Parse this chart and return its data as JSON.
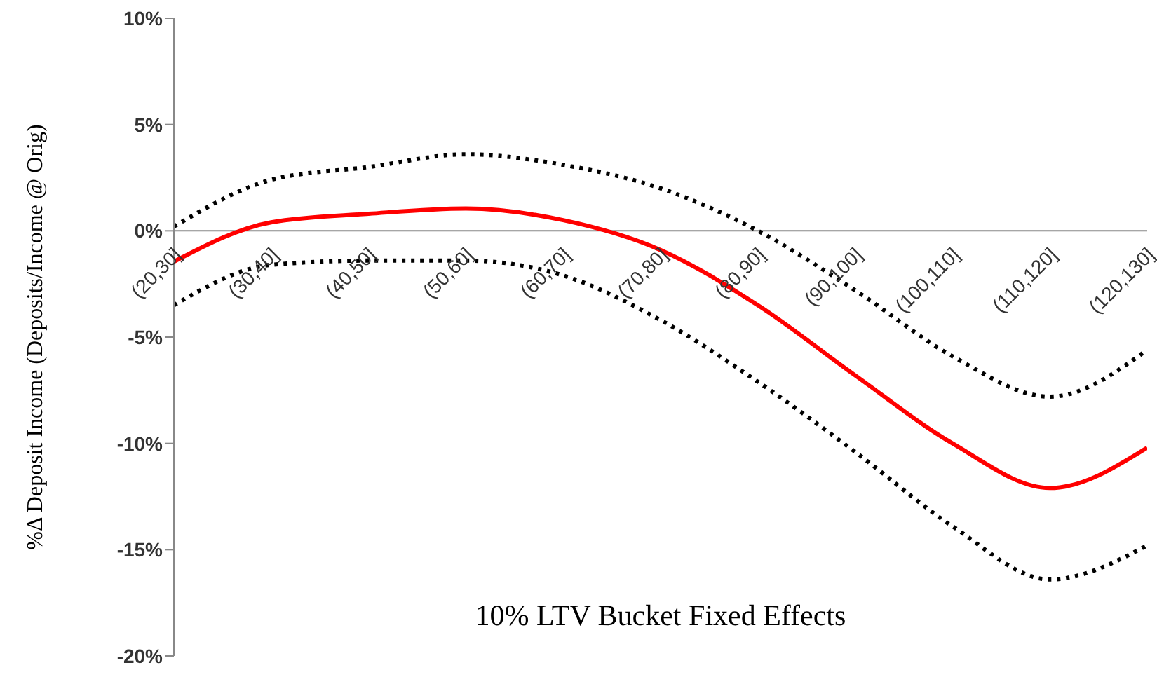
{
  "chart_data": {
    "type": "line",
    "xlabel": "10% LTV Bucket Fixed Effects",
    "ylabel": "%Δ Deposit Income (Deposits/Income @ Orig)",
    "categories": [
      "(20,30]",
      "(30,40]",
      "(40,50]",
      "(50,60]",
      "(60,70]",
      "(70,80]",
      "(80,90]",
      "(90,100]",
      "(100,110]",
      "(110,120]",
      "(120,130]"
    ],
    "series": [
      {
        "color": "#ff0000",
        "line_style": "solid",
        "values": [
          -1.45,
          0.4,
          0.8,
          1.05,
          0.5,
          -0.9,
          -3.5,
          -6.8,
          -10.0,
          -12.1,
          -10.2
        ]
      },
      {
        "color": "#000000",
        "line_style": "dotted",
        "values": [
          0.2,
          2.4,
          3.0,
          3.6,
          3.1,
          2.0,
          0.0,
          -2.8,
          -5.9,
          -7.8,
          -5.6
        ]
      },
      {
        "color": "#000000",
        "line_style": "dotted",
        "values": [
          -3.5,
          -1.6,
          -1.4,
          -1.4,
          -2.1,
          -4.2,
          -7.1,
          -10.4,
          -13.9,
          -16.4,
          -14.8
        ]
      }
    ],
    "ylim": [
      -20,
      10
    ],
    "yticks": [
      {
        "value": -20,
        "label": "-20%"
      },
      {
        "value": -15,
        "label": "-15%"
      },
      {
        "value": -10,
        "label": "-10%"
      },
      {
        "value": -5,
        "label": "-5%"
      },
      {
        "value": 0,
        "label": "0%"
      },
      {
        "value": 5,
        "label": "5%"
      },
      {
        "value": 10,
        "label": "10%"
      }
    ],
    "marker": "none"
  }
}
